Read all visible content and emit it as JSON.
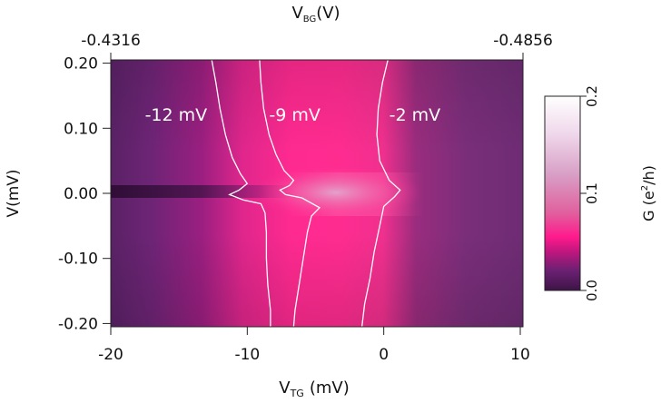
{
  "chart_data": {
    "type": "heatmap",
    "bottom_axis": {
      "label_main": "V",
      "label_sub": "TG",
      "label_unit": "(mV)",
      "range": [
        -20,
        10.2
      ],
      "ticks": [
        -20,
        -10,
        0,
        10
      ],
      "tick_labels": [
        "-20",
        "-10",
        "0",
        "10"
      ]
    },
    "top_axis": {
      "label_main": "V",
      "label_sub": "BG",
      "label_unit": "(V)",
      "ticks": [
        -20,
        10.2
      ],
      "tick_labels": [
        "-0.4316",
        "-0.4856"
      ]
    },
    "left_axis": {
      "label": "V(mV)",
      "range": [
        -0.205,
        0.205
      ],
      "ticks": [
        0.2,
        0.1,
        0.0,
        -0.1,
        -0.2
      ],
      "tick_labels": [
        "0.20",
        "0.10",
        "0.00",
        "-0.10",
        "-0.20"
      ]
    },
    "colorbar": {
      "label_main": "G (e",
      "label_sup": "2",
      "label_end": "/h)",
      "range": [
        0.0,
        0.2
      ],
      "ticks": [
        0.0,
        0.1,
        0.2
      ],
      "tick_labels": [
        "0.0",
        "0.1",
        "0.2"
      ],
      "stops": [
        {
          "v": 0.0,
          "color": "#3d1446"
        },
        {
          "v": 0.02,
          "color": "#6a2072"
        },
        {
          "v": 0.04,
          "color": "#c0167e"
        },
        {
          "v": 0.055,
          "color": "#ff1a8c"
        },
        {
          "v": 0.08,
          "color": "#e0609e"
        },
        {
          "v": 0.12,
          "color": "#d8a0c6"
        },
        {
          "v": 0.16,
          "color": "#efd6ea"
        },
        {
          "v": 0.2,
          "color": "#ffffff"
        }
      ]
    },
    "contours": [
      {
        "label": "-12 mV",
        "label_at": [
          -17.5,
          0.12
        ],
        "points": [
          [
            -12.6,
            0.205
          ],
          [
            -12.3,
            0.17
          ],
          [
            -12.0,
            0.13
          ],
          [
            -11.6,
            0.09
          ],
          [
            -11.1,
            0.055
          ],
          [
            -10.5,
            0.03
          ],
          [
            -10.0,
            0.015
          ],
          [
            -10.6,
            0.005
          ],
          [
            -11.3,
            -0.002
          ],
          [
            -10.3,
            -0.01
          ],
          [
            -9.0,
            -0.016
          ],
          [
            -8.7,
            -0.03
          ],
          [
            -8.6,
            -0.06
          ],
          [
            -8.6,
            -0.1
          ],
          [
            -8.5,
            -0.14
          ],
          [
            -8.3,
            -0.18
          ],
          [
            -8.3,
            -0.205
          ]
        ]
      },
      {
        "label": "-9 mV",
        "label_at": [
          -8.4,
          0.12
        ],
        "points": [
          [
            -9.1,
            0.205
          ],
          [
            -9.0,
            0.17
          ],
          [
            -8.8,
            0.13
          ],
          [
            -8.4,
            0.09
          ],
          [
            -7.9,
            0.06
          ],
          [
            -7.3,
            0.035
          ],
          [
            -6.6,
            0.02
          ],
          [
            -6.9,
            0.012
          ],
          [
            -7.6,
            0.005
          ],
          [
            -7.2,
            -0.002
          ],
          [
            -6.0,
            -0.007
          ],
          [
            -4.7,
            -0.022
          ],
          [
            -5.3,
            -0.035
          ],
          [
            -5.6,
            -0.06
          ],
          [
            -5.9,
            -0.1
          ],
          [
            -6.2,
            -0.14
          ],
          [
            -6.5,
            -0.18
          ],
          [
            -6.6,
            -0.205
          ]
        ]
      },
      {
        "label": "-2 mV",
        "label_at": [
          0.4,
          0.12
        ],
        "points": [
          [
            0.3,
            0.205
          ],
          [
            -0.1,
            0.17
          ],
          [
            -0.4,
            0.13
          ],
          [
            -0.5,
            0.09
          ],
          [
            -0.3,
            0.05
          ],
          [
            0.4,
            0.02
          ],
          [
            1.2,
            0.005
          ],
          [
            0.8,
            -0.005
          ],
          [
            0.0,
            -0.02
          ],
          [
            -0.3,
            -0.05
          ],
          [
            -0.7,
            -0.09
          ],
          [
            -1.0,
            -0.13
          ],
          [
            -1.4,
            -0.17
          ],
          [
            -1.6,
            -0.205
          ]
        ]
      }
    ]
  }
}
